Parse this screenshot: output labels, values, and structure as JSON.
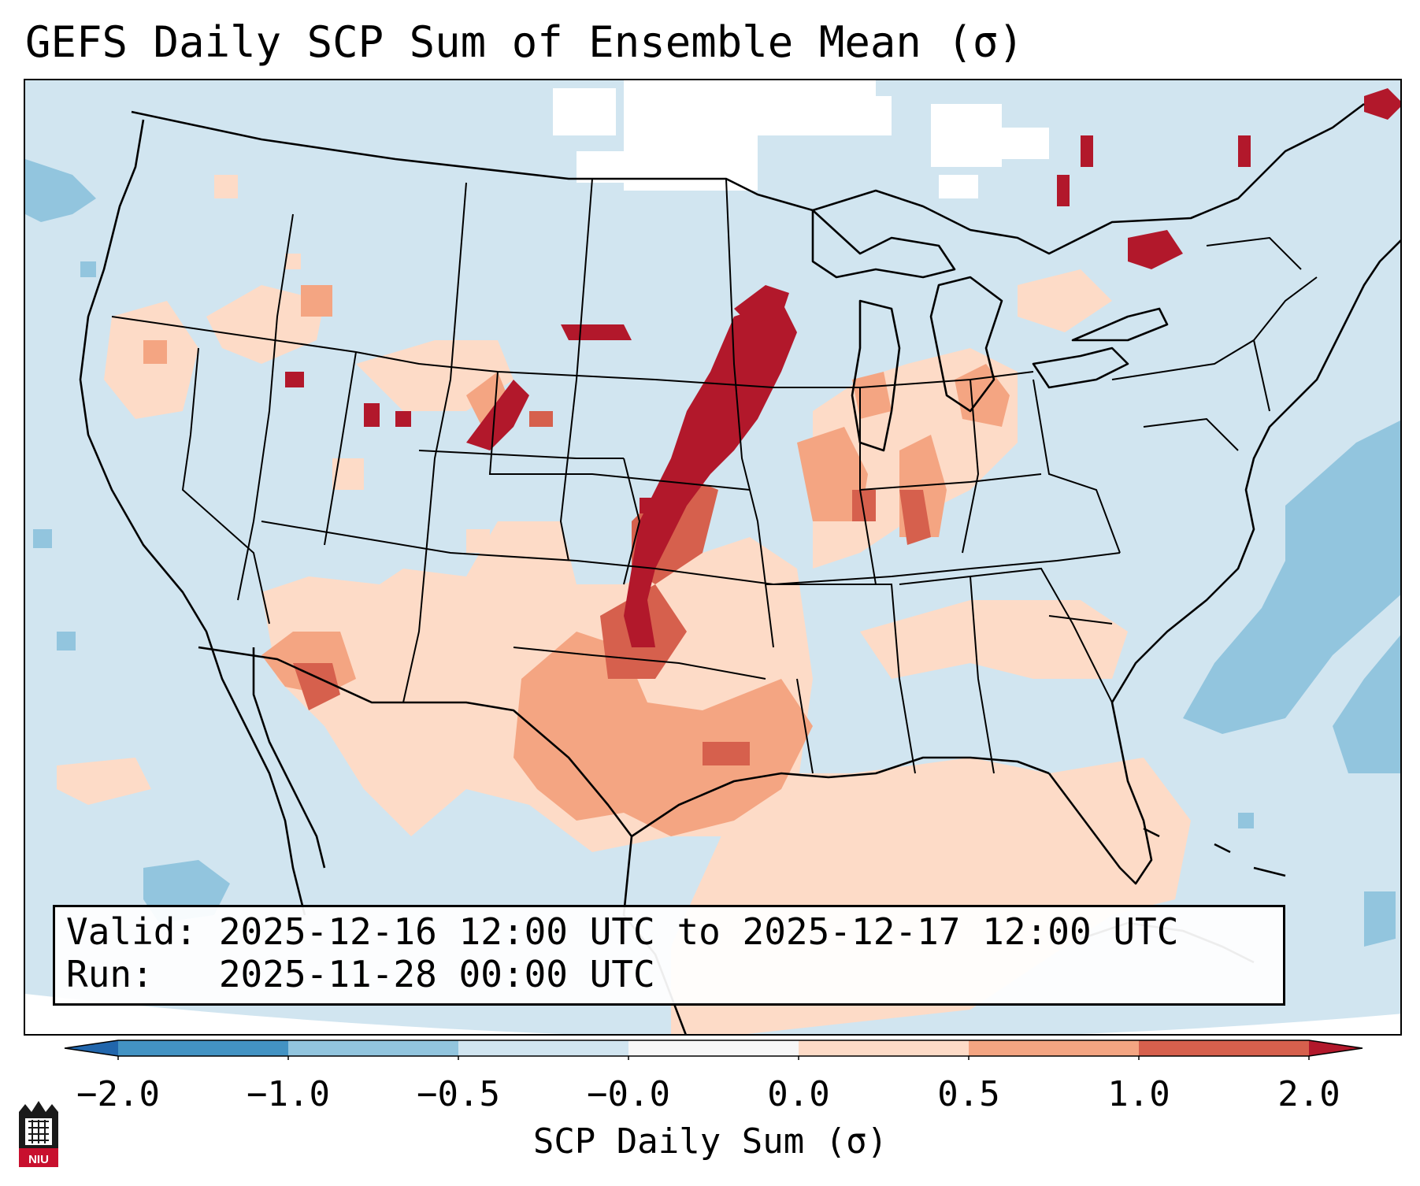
{
  "title": "GEFS Daily SCP Sum of Ensemble Mean (σ)",
  "info": {
    "valid_line": "Valid: 2025-12-16 12:00 UTC to 2025-12-17 12:00 UTC",
    "run_line": "Run:   2025-11-28 00:00 UTC"
  },
  "colorbar": {
    "label": "SCP Daily Sum (σ)",
    "ticks": [
      "−2.0",
      "−1.0",
      "−0.5",
      "−0.0",
      "0.0",
      "0.5",
      "1.0",
      "2.0"
    ],
    "bins": [
      {
        "from": -2.0,
        "to": -1.0,
        "color": "#4393c3"
      },
      {
        "from": -1.0,
        "to": -0.5,
        "color": "#92c5de"
      },
      {
        "from": -0.5,
        "to": -0.0,
        "color": "#d1e5f0"
      },
      {
        "from": -0.0,
        "to": 0.0,
        "color": "#f7f7f7"
      },
      {
        "from": 0.0,
        "to": 0.5,
        "color": "#fddbc7"
      },
      {
        "from": 0.5,
        "to": 1.0,
        "color": "#f4a582"
      },
      {
        "from": 1.0,
        "to": 2.0,
        "color": "#d6604d"
      }
    ],
    "under_color": "#2166ac",
    "over_color": "#b2182b"
  },
  "map": {
    "region": "Contiguous United States",
    "ocean_color": "#cfe3ef",
    "high_signal_regions": [
      "Iowa",
      "Missouri",
      "Kansas",
      "Oklahoma",
      "Texas"
    ]
  },
  "logo": {
    "text": "NIU",
    "color": "#c8102e"
  }
}
